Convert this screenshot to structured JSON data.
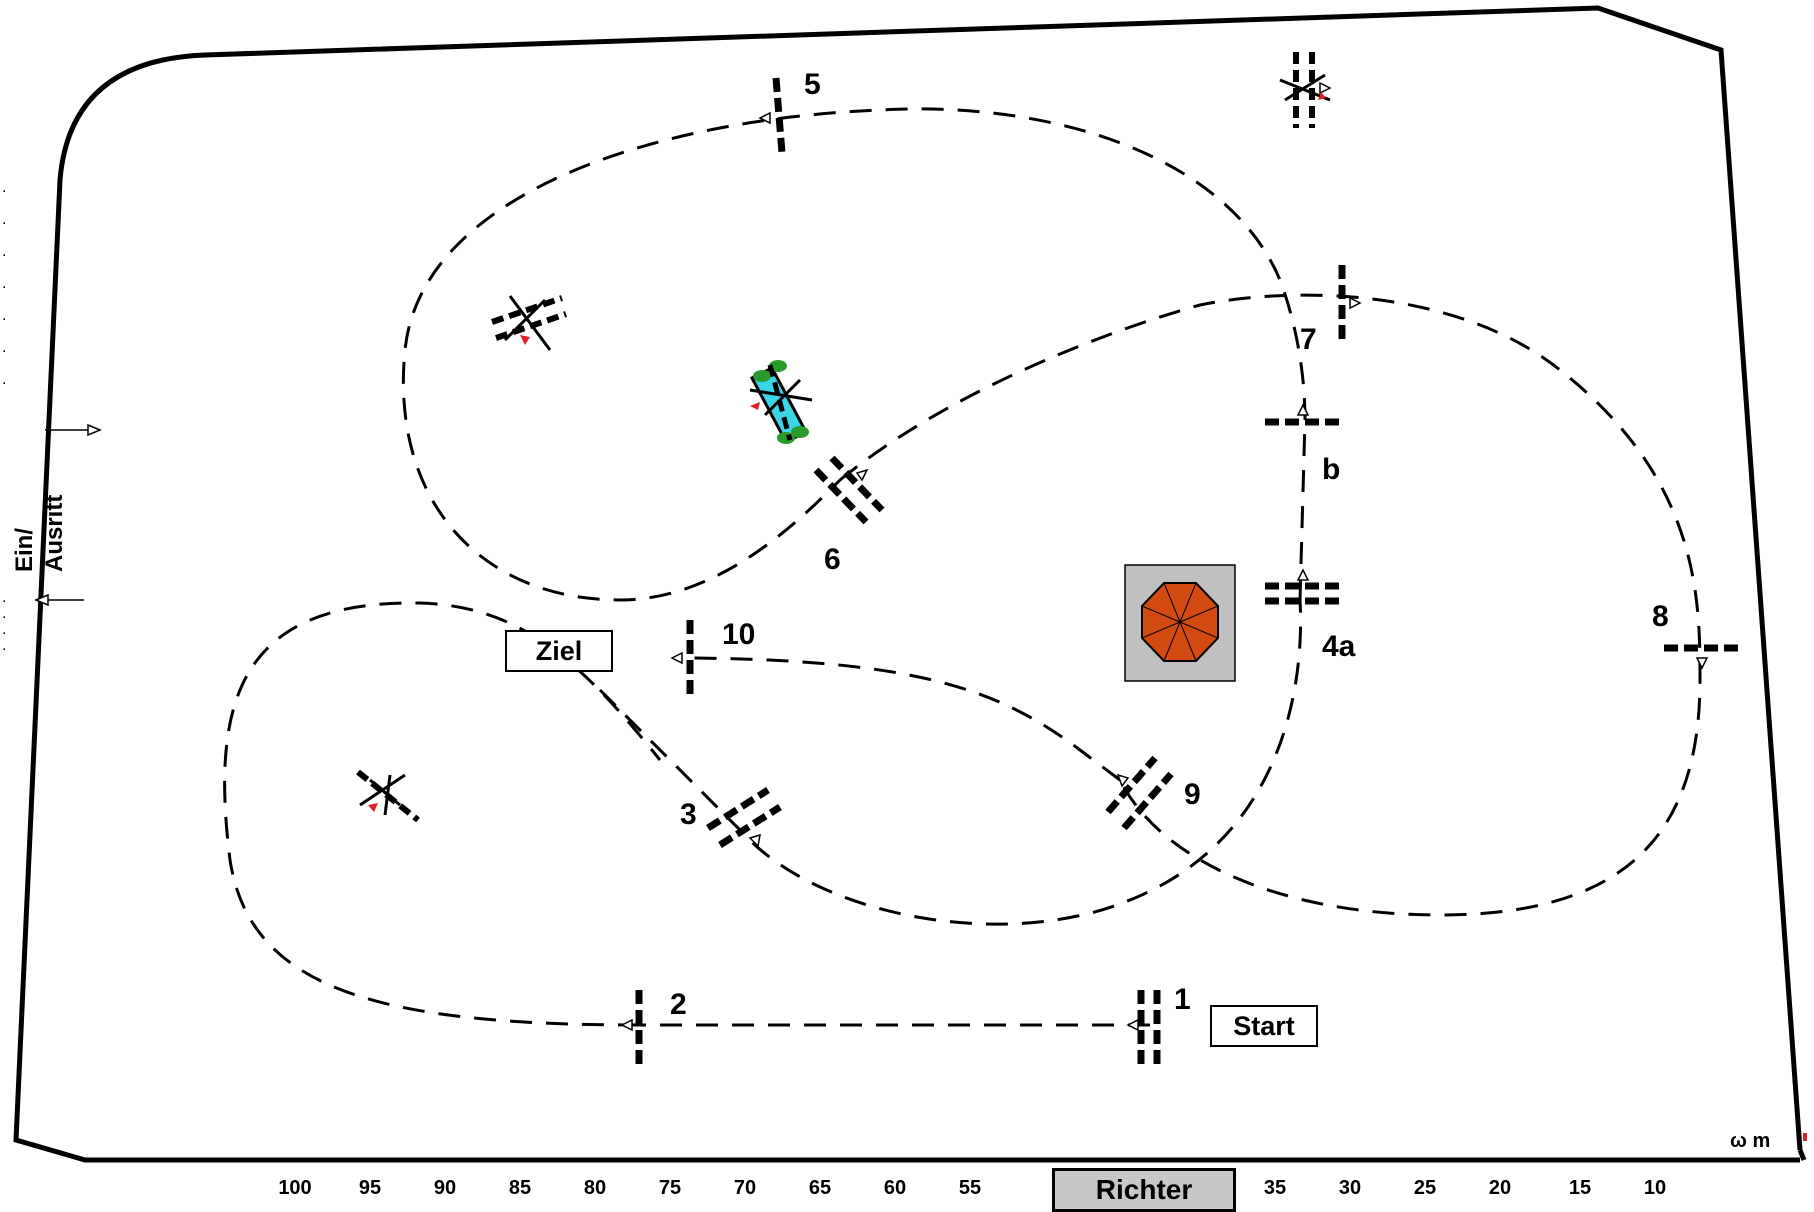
{
  "labels": {
    "start": "Start",
    "finish": "Ziel",
    "judge": "Richter",
    "entrance_line1": "Ein/",
    "entrance_line2": "Ausritt",
    "corner_mark": "ω m"
  },
  "obstacles": [
    {
      "id": "1",
      "label": "1"
    },
    {
      "id": "2",
      "label": "2"
    },
    {
      "id": "3",
      "label": "3"
    },
    {
      "id": "4a",
      "label": "4a"
    },
    {
      "id": "b",
      "label": "b"
    },
    {
      "id": "5",
      "label": "5"
    },
    {
      "id": "6",
      "label": "6"
    },
    {
      "id": "7",
      "label": "7"
    },
    {
      "id": "8",
      "label": "8"
    },
    {
      "id": "9",
      "label": "9"
    },
    {
      "id": "10",
      "label": "10"
    }
  ],
  "scale_ticks": [
    "100",
    "95",
    "90",
    "85",
    "80",
    "75",
    "70",
    "65",
    "60",
    "55",
    "35",
    "30",
    "25",
    "20",
    "15",
    "10"
  ],
  "colors": {
    "judge_box": "#c8c8c8",
    "umbrella": "#d24a10",
    "umbrella_box": "#c0c0c0",
    "water_jump": "#3ad6e6",
    "flower": "#2a9a2a",
    "flag": "#e02020"
  }
}
